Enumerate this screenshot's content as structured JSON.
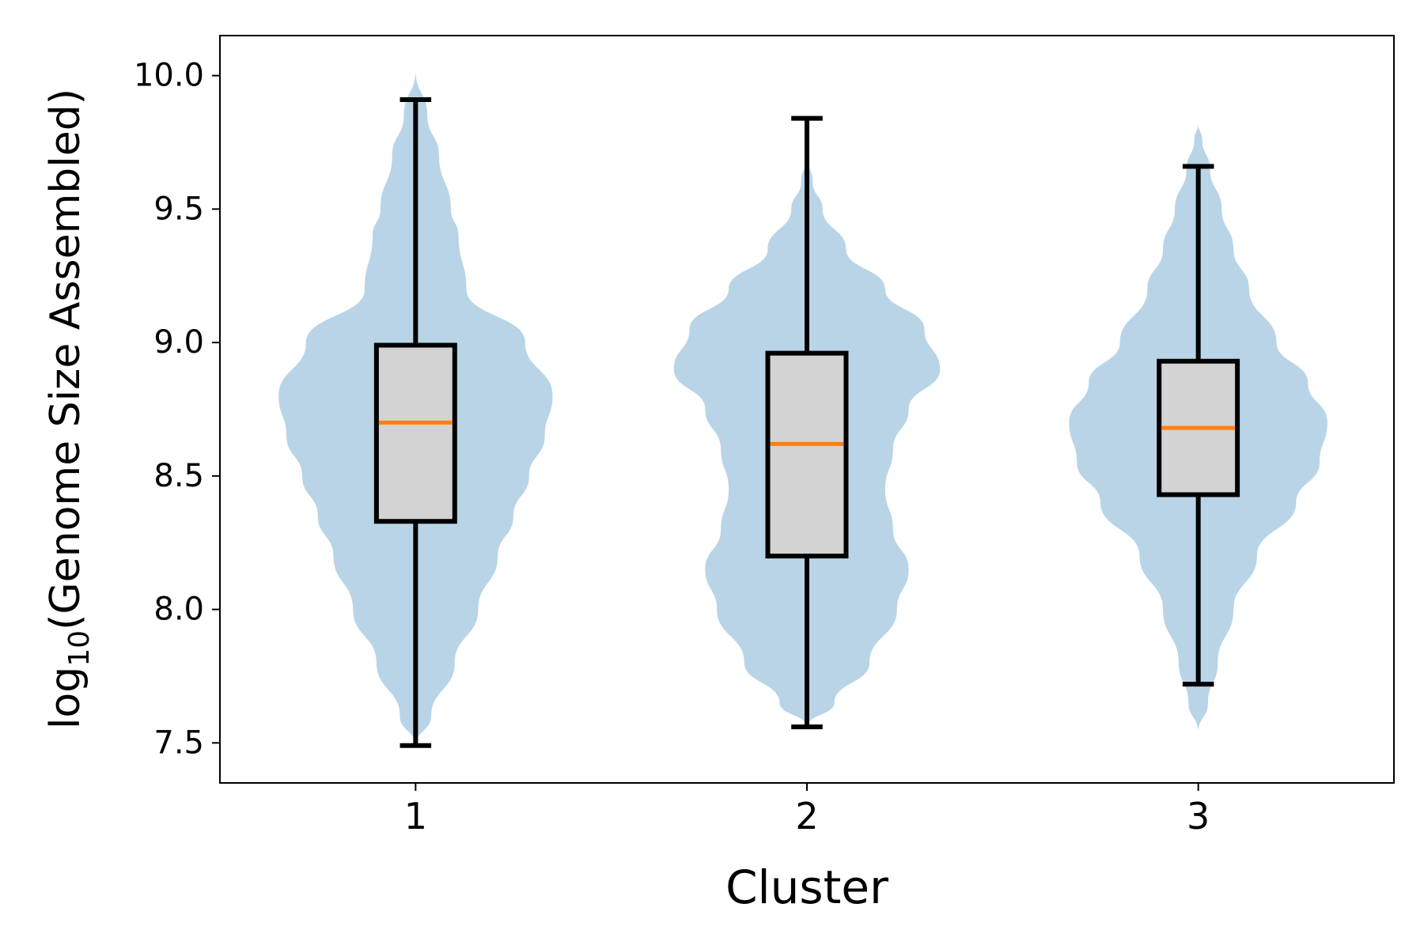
{
  "chart_data": {
    "type": "violin+box",
    "categories": [
      "1",
      "2",
      "3"
    ],
    "xlabel": "Cluster",
    "ylabel": {
      "prefix": "log",
      "subscript": "10",
      "suffix": "(Genome Size Assembled)"
    },
    "ylim": [
      7.35,
      10.15
    ],
    "yticks": [
      "7.5",
      "8.0",
      "8.5",
      "9.0",
      "9.5",
      "10.0"
    ],
    "grid": false,
    "colors": {
      "violin": "#b9d4e7",
      "box_fill": "#d3d3d3",
      "box_edge": "#000000",
      "median": "#ff7f0e"
    },
    "series": [
      {
        "category": "1",
        "whisker_low": 7.49,
        "q1": 8.33,
        "median": 8.7,
        "q3": 8.99,
        "whisker_high": 9.91,
        "violin": {
          "y": [
            7.49,
            7.6,
            7.8,
            8.0,
            8.2,
            8.35,
            8.5,
            8.65,
            8.8,
            9.0,
            9.2,
            9.4,
            9.5,
            9.7,
            9.85,
            10.02
          ],
          "half_width": [
            0.0,
            0.04,
            0.1,
            0.16,
            0.21,
            0.25,
            0.29,
            0.33,
            0.35,
            0.28,
            0.13,
            0.11,
            0.09,
            0.06,
            0.03,
            0.0
          ]
        }
      },
      {
        "category": "2",
        "whisker_low": 7.56,
        "q1": 8.2,
        "median": 8.62,
        "q3": 8.96,
        "whisker_high": 9.84,
        "violin": {
          "y": [
            7.56,
            7.65,
            7.8,
            8.0,
            8.15,
            8.3,
            8.45,
            8.6,
            8.75,
            8.9,
            9.05,
            9.2,
            9.35,
            9.5,
            9.6,
            9.7
          ],
          "half_width": [
            0.0,
            0.07,
            0.16,
            0.23,
            0.26,
            0.22,
            0.2,
            0.22,
            0.26,
            0.34,
            0.3,
            0.2,
            0.1,
            0.04,
            0.015,
            0.0
          ]
        }
      },
      {
        "category": "3",
        "whisker_low": 7.72,
        "q1": 8.43,
        "median": 8.68,
        "q3": 8.93,
        "whisker_high": 9.66,
        "violin": {
          "y": [
            7.54,
            7.65,
            7.8,
            8.0,
            8.2,
            8.4,
            8.55,
            8.7,
            8.85,
            9.0,
            9.2,
            9.35,
            9.5,
            9.65,
            9.76,
            9.82
          ],
          "half_width": [
            0.0,
            0.025,
            0.05,
            0.09,
            0.15,
            0.25,
            0.31,
            0.33,
            0.28,
            0.2,
            0.13,
            0.09,
            0.06,
            0.03,
            0.01,
            0.0
          ]
        }
      }
    ]
  }
}
